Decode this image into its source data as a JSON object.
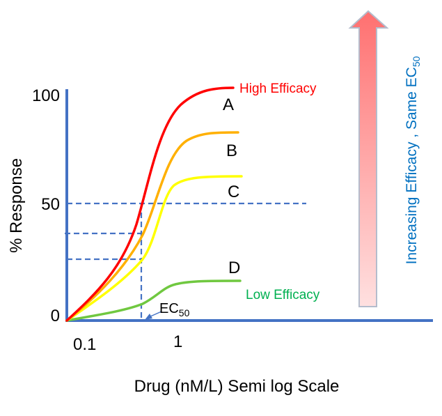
{
  "axes": {
    "y_label": "% Response",
    "x_label": "Drug (nM/L) Semi log Scale",
    "y_ticks": [
      "100",
      "50",
      "0"
    ],
    "x_ticks": [
      "0.1",
      "1"
    ]
  },
  "curves": [
    {
      "label": "A",
      "color": "#ff0000",
      "annotation": "High Efficacy"
    },
    {
      "label": "B",
      "color": "#ffb000"
    },
    {
      "label": "C",
      "color": "#ffff00"
    },
    {
      "label": "D",
      "color": "#70c840",
      "annotation": "Low Efficacy"
    }
  ],
  "ec50": {
    "main": "EC",
    "sub": "50"
  },
  "side_note": {
    "main": "Increasing Efficacy , Same EC",
    "sub": "50"
  },
  "colors": {
    "axis": "#4472c4",
    "high": "#ff0000",
    "low": "#00b050",
    "note": "#0070c0",
    "arrow_top": "#ff7070",
    "arrow_bottom": "#ffe0e0"
  }
}
